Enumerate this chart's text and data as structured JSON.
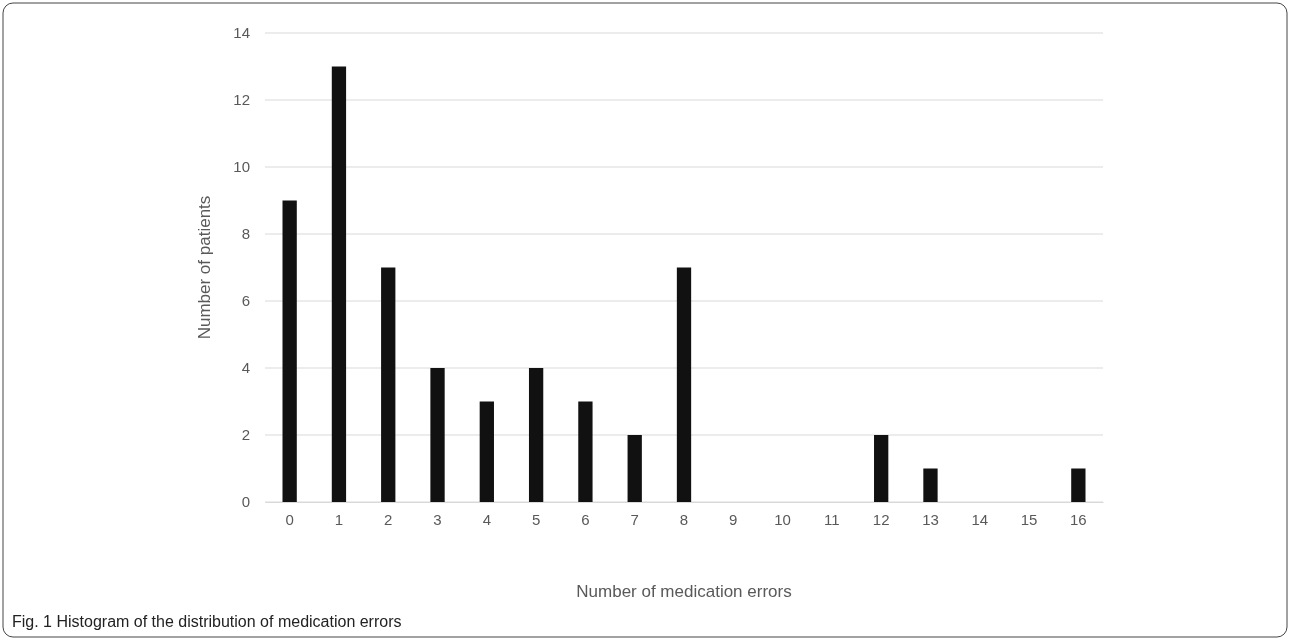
{
  "chart_data": {
    "type": "bar",
    "xlabel": "Number of medication errors",
    "ylabel": "Number of patients",
    "categories": [
      "0",
      "1",
      "2",
      "3",
      "4",
      "5",
      "6",
      "7",
      "8",
      "9",
      "10",
      "11",
      "12",
      "13",
      "14",
      "15",
      "16"
    ],
    "values": [
      9,
      13,
      7,
      4,
      3,
      4,
      3,
      2,
      7,
      0,
      0,
      0,
      2,
      1,
      0,
      0,
      1
    ],
    "color": "#111111",
    "ylim": [
      0,
      14
    ],
    "yticks": [
      0,
      2,
      4,
      6,
      8,
      10,
      12,
      14
    ],
    "grid": "y",
    "annotations": [
      "Fig. 1 Histogram of the distribution of medication errors"
    ]
  }
}
